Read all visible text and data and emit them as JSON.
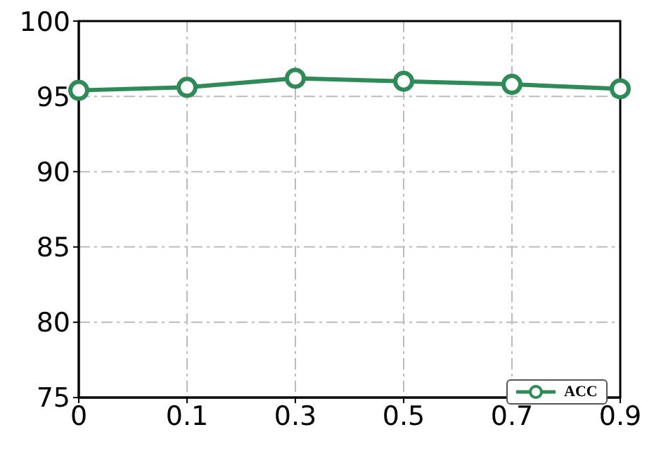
{
  "chart_data": {
    "type": "line",
    "categories": [
      "0",
      "0.1",
      "0.3",
      "0.5",
      "0.7",
      "0.9"
    ],
    "series": [
      {
        "name": "ACC",
        "color": "#2e8b57",
        "values": [
          95.4,
          95.6,
          96.2,
          96.0,
          95.8,
          95.5
        ]
      }
    ],
    "ylim": [
      75,
      100
    ],
    "yticks": [
      75,
      80,
      85,
      90,
      95,
      100
    ],
    "grid": true,
    "legend": "bottom right",
    "marker": "circle",
    "line_style": "solid"
  }
}
